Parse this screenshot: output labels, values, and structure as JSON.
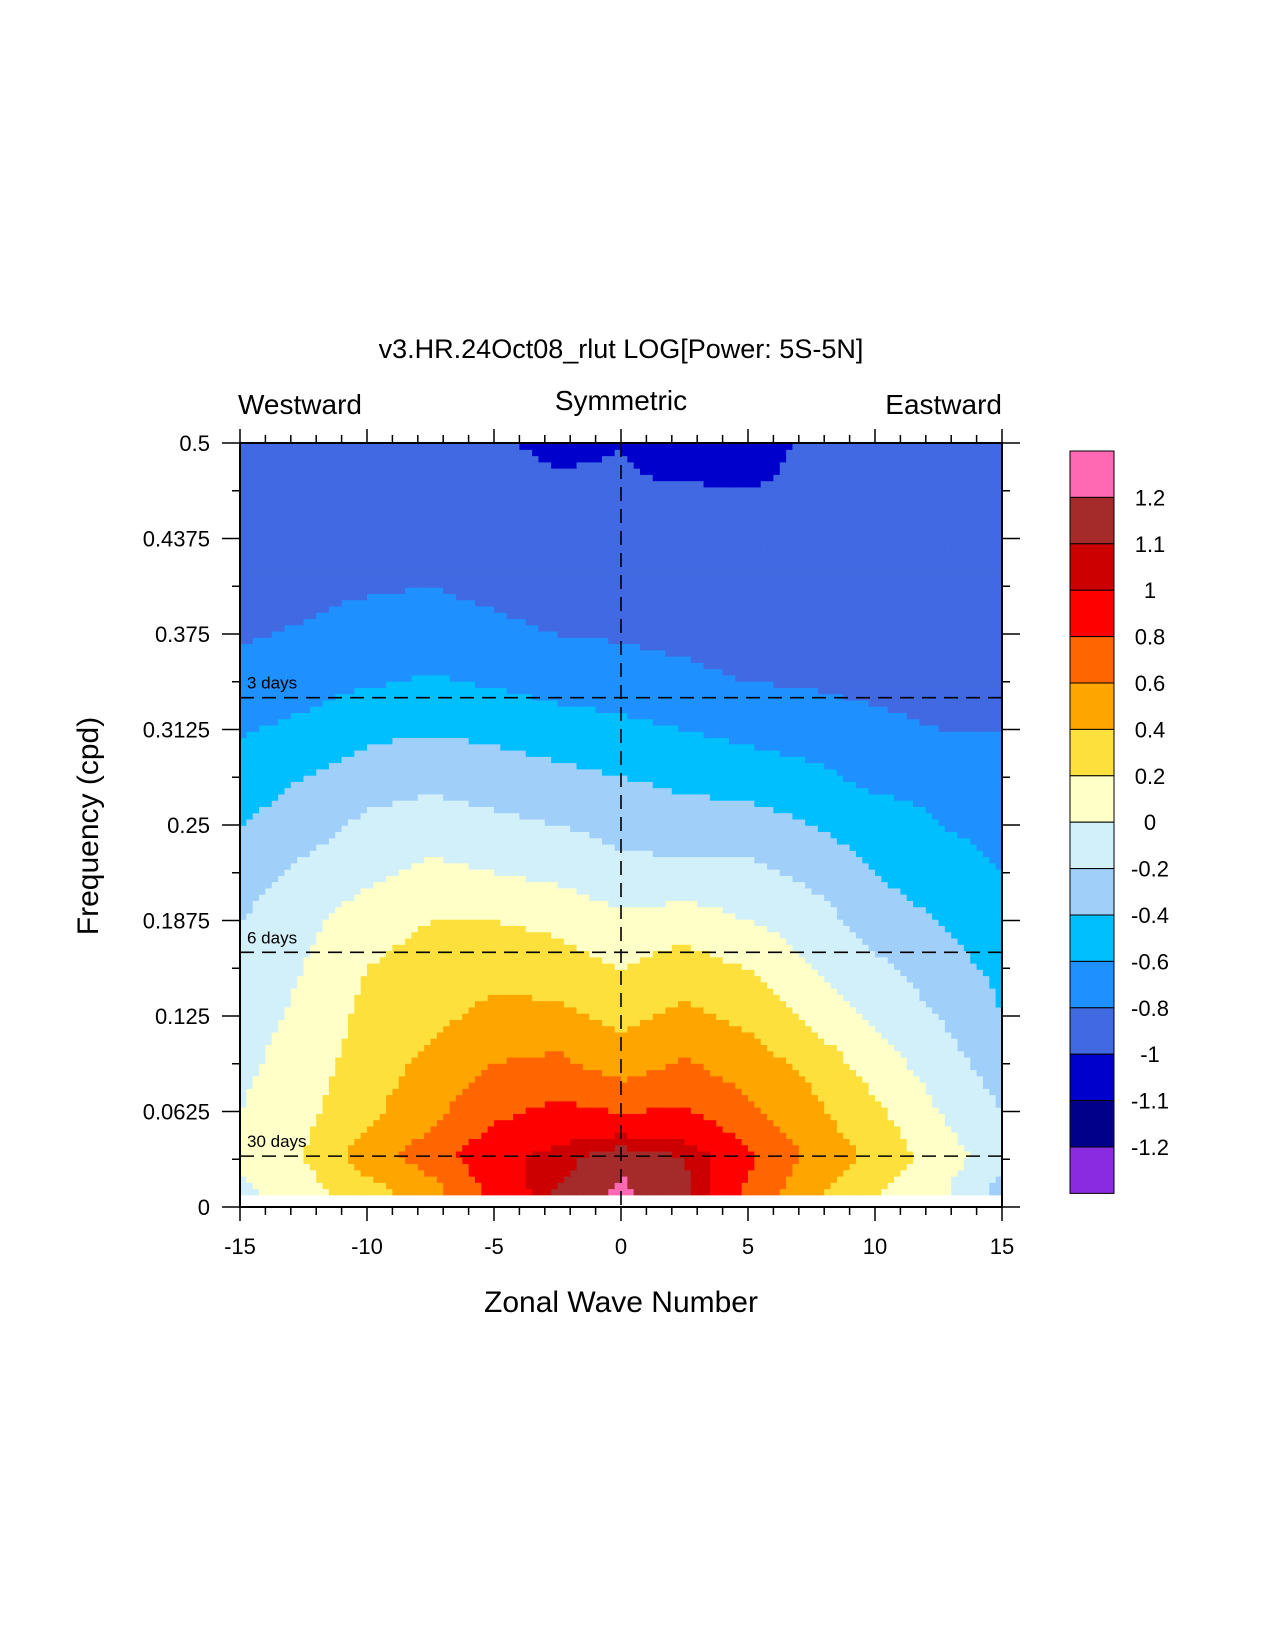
{
  "chart_data": {
    "type": "heatmap",
    "title": "v3.HR.24Oct08_rlut LOG[Power: 5S-5N]",
    "corner_labels": {
      "left": "Westward",
      "center": "Symmetric",
      "right": "Eastward"
    },
    "xlabel": "Zonal Wave Number",
    "ylabel": "Frequency (cpd)",
    "xlim": [
      -15,
      15
    ],
    "ylim": [
      0,
      0.5
    ],
    "x_ticks": [
      {
        "value": -15,
        "label": "-15"
      },
      {
        "value": -10,
        "label": "-10"
      },
      {
        "value": -5,
        "label": "-5"
      },
      {
        "value": 0,
        "label": "0"
      },
      {
        "value": 5,
        "label": "5"
      },
      {
        "value": 10,
        "label": "10"
      },
      {
        "value": 15,
        "label": "15"
      }
    ],
    "y_ticks": [
      {
        "value": 0,
        "label": "0"
      },
      {
        "value": 0.0625,
        "label": "0.0625"
      },
      {
        "value": 0.125,
        "label": "0.125"
      },
      {
        "value": 0.1875,
        "label": "0.1875"
      },
      {
        "value": 0.25,
        "label": "0.25"
      },
      {
        "value": 0.3125,
        "label": "0.3125"
      },
      {
        "value": 0.375,
        "label": "0.375"
      },
      {
        "value": 0.4375,
        "label": "0.4375"
      },
      {
        "value": 0.5,
        "label": "0.5"
      }
    ],
    "reference_lines": [
      {
        "orientation": "horizontal",
        "value": 0.3333,
        "label": "3 days"
      },
      {
        "orientation": "horizontal",
        "value": 0.1667,
        "label": "6 days"
      },
      {
        "orientation": "horizontal",
        "value": 0.0333,
        "label": "30 days"
      },
      {
        "orientation": "vertical",
        "value": 0,
        "label": ""
      }
    ],
    "levels": [
      -1.2,
      -1.1,
      -1,
      -0.8,
      -0.6,
      -0.4,
      -0.2,
      0,
      0.2,
      0.4,
      0.6,
      0.8,
      1,
      1.1,
      1.2
    ],
    "colorbar_labels": [
      "-1.2",
      "-1.1",
      "-1",
      "-0.8",
      "-0.6",
      "-0.4",
      "-0.2",
      "0",
      "0.2",
      "0.4",
      "0.6",
      "0.8",
      "1",
      "1.1",
      "1.2"
    ],
    "colors": [
      "#8a2be2",
      "#00008b",
      "#0000cd",
      "#4169e1",
      "#1e90ff",
      "#00bfff",
      "#a0cffa",
      "#d2f0fa",
      "#ffffc8",
      "#fde03c",
      "#ffa500",
      "#ff6600",
      "#ff0000",
      "#cc0000",
      "#a52a2a",
      "#ff69b4"
    ],
    "legend": "right",
    "grid": false,
    "field": {
      "x": [
        -15,
        -12.5,
        -10,
        -7.5,
        -5,
        -2.5,
        0,
        2.5,
        5,
        7.5,
        10,
        12.5,
        15
      ],
      "y": [
        0.008,
        0.0333,
        0.0625,
        0.09375,
        0.125,
        0.15625,
        0.1875,
        0.21875,
        0.25,
        0.28125,
        0.3125,
        0.34375,
        0.375,
        0.40625,
        0.4375,
        0.46875,
        0.5
      ],
      "z": [
        [
          -0.05,
          0.1,
          0.3,
          0.5,
          0.85,
          1.12,
          1.22,
          1.15,
          0.75,
          0.45,
          0.2,
          0.05,
          -0.3
        ],
        [
          0.05,
          0.2,
          0.5,
          0.7,
          0.95,
          1.05,
          1.18,
          1.1,
          0.85,
          0.55,
          0.35,
          0.1,
          -0.1
        ],
        [
          0.0,
          0.15,
          0.35,
          0.55,
          0.75,
          0.85,
          0.8,
          0.82,
          0.65,
          0.45,
          0.25,
          0.0,
          -0.2
        ],
        [
          -0.05,
          0.1,
          0.3,
          0.45,
          0.6,
          0.65,
          0.5,
          0.62,
          0.5,
          0.35,
          0.1,
          -0.1,
          -0.3
        ],
        [
          -0.1,
          0.05,
          0.25,
          0.35,
          0.45,
          0.45,
          0.35,
          0.45,
          0.35,
          0.15,
          -0.05,
          -0.2,
          -0.4
        ],
        [
          -0.15,
          0.0,
          0.2,
          0.3,
          0.35,
          0.3,
          0.2,
          0.3,
          0.2,
          0.0,
          -0.15,
          -0.3,
          -0.45
        ],
        [
          -0.2,
          -0.05,
          0.1,
          0.2,
          0.2,
          0.15,
          0.05,
          0.1,
          0.0,
          -0.1,
          -0.3,
          -0.4,
          -0.55
        ],
        [
          -0.3,
          -0.15,
          -0.05,
          0.05,
          0.0,
          -0.05,
          -0.15,
          -0.15,
          -0.15,
          -0.25,
          -0.4,
          -0.5,
          -0.6
        ],
        [
          -0.4,
          -0.3,
          -0.15,
          -0.1,
          -0.15,
          -0.2,
          -0.25,
          -0.3,
          -0.3,
          -0.4,
          -0.5,
          -0.6,
          -0.65
        ],
        [
          -0.5,
          -0.4,
          -0.3,
          -0.25,
          -0.3,
          -0.35,
          -0.4,
          -0.45,
          -0.5,
          -0.55,
          -0.65,
          -0.65,
          -0.7
        ],
        [
          -0.62,
          -0.55,
          -0.45,
          -0.42,
          -0.45,
          -0.5,
          -0.55,
          -0.6,
          -0.65,
          -0.7,
          -0.75,
          -0.8,
          -0.8
        ],
        [
          -0.75,
          -0.68,
          -0.62,
          -0.58,
          -0.62,
          -0.68,
          -0.7,
          -0.75,
          -0.8,
          -0.82,
          -0.85,
          -0.88,
          -0.88
        ],
        [
          -0.82,
          -0.78,
          -0.72,
          -0.7,
          -0.75,
          -0.8,
          -0.82,
          -0.85,
          -0.9,
          -0.9,
          -0.92,
          -0.95,
          -0.95
        ],
        [
          -0.88,
          -0.85,
          -0.82,
          -0.8,
          -0.85,
          -0.9,
          -0.92,
          -0.95,
          -0.95,
          -0.96,
          -0.97,
          -0.98,
          -0.98
        ],
        [
          -0.92,
          -0.9,
          -0.88,
          -0.88,
          -0.92,
          -0.95,
          -0.96,
          -0.98,
          -0.98,
          -0.98,
          -0.98,
          -0.99,
          -0.99
        ],
        [
          -0.96,
          -0.95,
          -0.95,
          -0.95,
          -0.96,
          -0.98,
          -0.99,
          -0.99,
          -1.0,
          -0.99,
          -0.99,
          -0.99,
          -0.99
        ],
        [
          -0.98,
          -0.98,
          -0.98,
          -0.98,
          -0.99,
          -1.02,
          -1.0,
          -1.05,
          -1.02,
          -0.99,
          -0.99,
          -0.99,
          -0.99
        ]
      ]
    }
  }
}
